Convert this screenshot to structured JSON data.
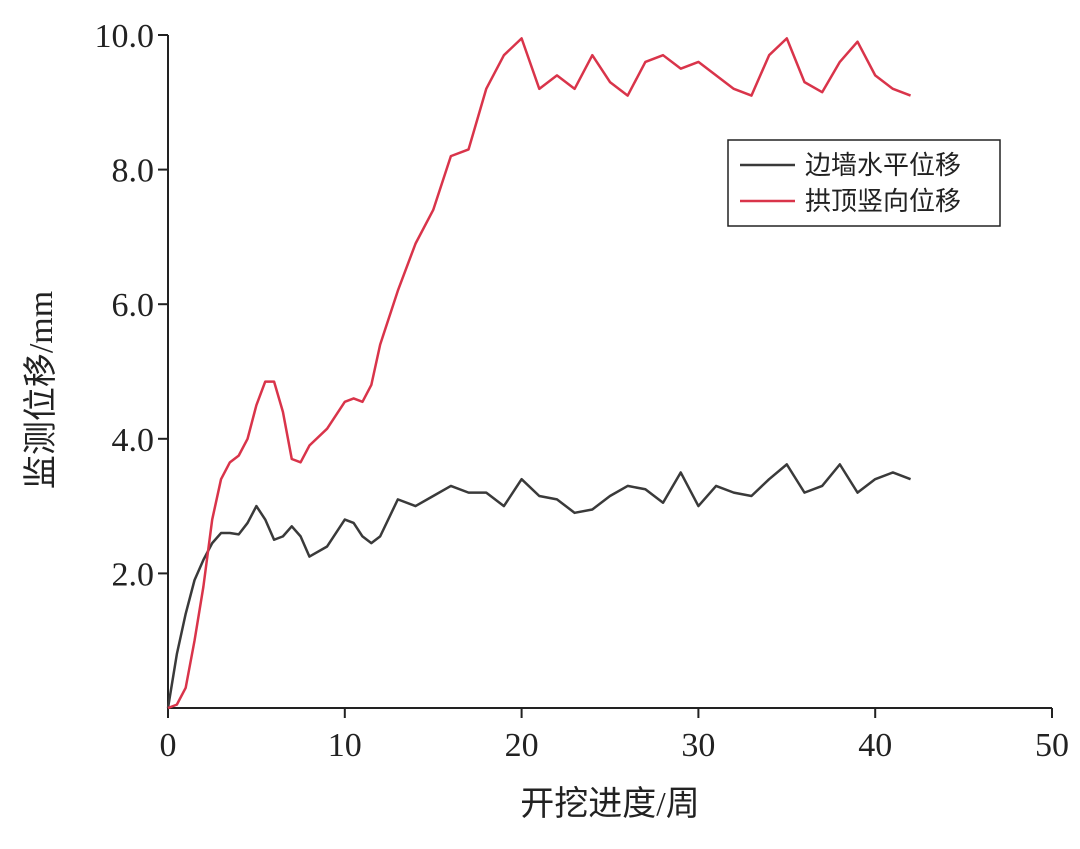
{
  "chart_data": {
    "type": "line",
    "x_label": "开挖进度/周",
    "y_label": "监测位移/mm",
    "x": [
      0,
      0.5,
      1,
      1.5,
      2,
      2.5,
      3,
      3.5,
      4,
      4.5,
      5,
      5.5,
      6,
      6.5,
      7,
      7.5,
      8,
      9,
      10,
      10.5,
      11,
      11.5,
      12,
      13,
      14,
      15,
      16,
      17,
      18,
      19,
      20,
      21,
      22,
      23,
      24,
      25,
      26,
      27,
      28,
      29,
      30,
      31,
      32,
      33,
      34,
      35,
      36,
      37,
      38,
      39,
      40,
      41,
      42
    ],
    "series": [
      {
        "name": "边墙水平位移",
        "color": "#3a3a3a",
        "values": [
          0,
          0.8,
          1.4,
          1.9,
          2.2,
          2.45,
          2.6,
          2.6,
          2.58,
          2.75,
          3.0,
          2.8,
          2.5,
          2.55,
          2.7,
          2.55,
          2.25,
          2.4,
          2.8,
          2.75,
          2.55,
          2.45,
          2.55,
          3.1,
          3.0,
          3.15,
          3.3,
          3.2,
          3.2,
          3.0,
          3.4,
          3.15,
          3.1,
          2.9,
          2.95,
          3.15,
          3.3,
          3.25,
          3.05,
          3.5,
          3.0,
          3.3,
          3.2,
          3.15,
          3.4,
          3.62,
          3.2,
          3.3,
          3.62,
          3.2,
          3.4,
          3.5,
          3.4
        ]
      },
      {
        "name": "拱顶竖向位移",
        "color": "#d9344a",
        "values": [
          0,
          0.05,
          0.3,
          1.0,
          1.8,
          2.8,
          3.4,
          3.65,
          3.75,
          4.0,
          4.5,
          4.85,
          4.85,
          4.4,
          3.7,
          3.65,
          3.9,
          4.15,
          4.55,
          4.6,
          4.55,
          4.8,
          5.4,
          6.2,
          6.9,
          7.4,
          8.2,
          8.3,
          9.2,
          9.7,
          9.95,
          9.2,
          9.4,
          9.2,
          9.7,
          9.3,
          9.1,
          9.6,
          9.7,
          9.5,
          9.6,
          9.4,
          9.2,
          9.1,
          9.7,
          9.95,
          9.3,
          9.15,
          9.6,
          9.9,
          9.4,
          9.2,
          9.1
        ]
      }
    ],
    "xlim": [
      0,
      50
    ],
    "xticks": [
      0,
      10,
      20,
      30,
      40,
      50
    ],
    "ylim": [
      0,
      10
    ],
    "yticks": [
      {
        "value": 2,
        "label": "2.0"
      },
      {
        "value": 4,
        "label": "4.0"
      },
      {
        "value": 6,
        "label": "6.0"
      },
      {
        "value": 8,
        "label": "8.0"
      },
      {
        "value": 10,
        "label": "10.0"
      }
    ],
    "legend": "upper right"
  }
}
